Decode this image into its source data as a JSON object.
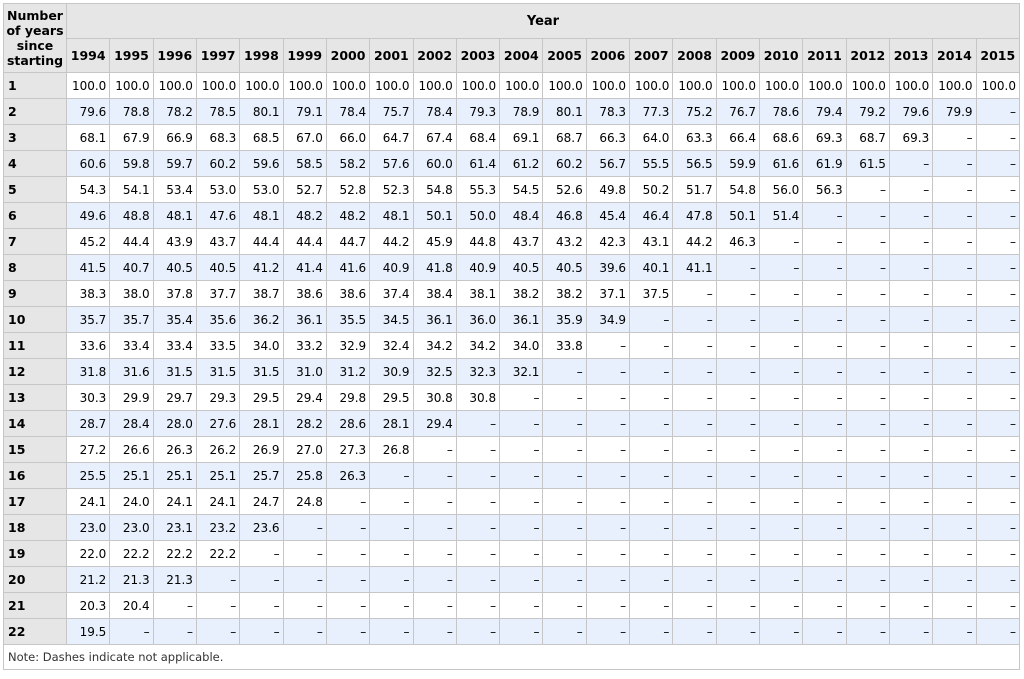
{
  "table": {
    "corner_label": "Number of years since starting",
    "group_label": "Year",
    "years": [
      "1994",
      "1995",
      "1996",
      "1997",
      "1998",
      "1999",
      "2000",
      "2001",
      "2002",
      "2003",
      "2004",
      "2005",
      "2006",
      "2007",
      "2008",
      "2009",
      "2010",
      "2011",
      "2012",
      "2013",
      "2014",
      "2015"
    ],
    "rows": [
      {
        "label": "1",
        "values": [
          "100.0",
          "100.0",
          "100.0",
          "100.0",
          "100.0",
          "100.0",
          "100.0",
          "100.0",
          "100.0",
          "100.0",
          "100.0",
          "100.0",
          "100.0",
          "100.0",
          "100.0",
          "100.0",
          "100.0",
          "100.0",
          "100.0",
          "100.0",
          "100.0",
          "100.0"
        ]
      },
      {
        "label": "2",
        "values": [
          "79.6",
          "78.8",
          "78.2",
          "78.5",
          "80.1",
          "79.1",
          "78.4",
          "75.7",
          "78.4",
          "79.3",
          "78.9",
          "80.1",
          "78.3",
          "77.3",
          "75.2",
          "76.7",
          "78.6",
          "79.4",
          "79.2",
          "79.6",
          "79.9",
          "–"
        ]
      },
      {
        "label": "3",
        "values": [
          "68.1",
          "67.9",
          "66.9",
          "68.3",
          "68.5",
          "67.0",
          "66.0",
          "64.7",
          "67.4",
          "68.4",
          "69.1",
          "68.7",
          "66.3",
          "64.0",
          "63.3",
          "66.4",
          "68.6",
          "69.3",
          "68.7",
          "69.3",
          "–",
          "–"
        ]
      },
      {
        "label": "4",
        "values": [
          "60.6",
          "59.8",
          "59.7",
          "60.2",
          "59.6",
          "58.5",
          "58.2",
          "57.6",
          "60.0",
          "61.4",
          "61.2",
          "60.2",
          "56.7",
          "55.5",
          "56.5",
          "59.9",
          "61.6",
          "61.9",
          "61.5",
          "–",
          "–",
          "–"
        ]
      },
      {
        "label": "5",
        "values": [
          "54.3",
          "54.1",
          "53.4",
          "53.0",
          "53.0",
          "52.7",
          "52.8",
          "52.3",
          "54.8",
          "55.3",
          "54.5",
          "52.6",
          "49.8",
          "50.2",
          "51.7",
          "54.8",
          "56.0",
          "56.3",
          "–",
          "–",
          "–",
          "–"
        ]
      },
      {
        "label": "6",
        "values": [
          "49.6",
          "48.8",
          "48.1",
          "47.6",
          "48.1",
          "48.2",
          "48.2",
          "48.1",
          "50.1",
          "50.0",
          "48.4",
          "46.8",
          "45.4",
          "46.4",
          "47.8",
          "50.1",
          "51.4",
          "–",
          "–",
          "–",
          "–",
          "–"
        ]
      },
      {
        "label": "7",
        "values": [
          "45.2",
          "44.4",
          "43.9",
          "43.7",
          "44.4",
          "44.4",
          "44.7",
          "44.2",
          "45.9",
          "44.8",
          "43.7",
          "43.2",
          "42.3",
          "43.1",
          "44.2",
          "46.3",
          "–",
          "–",
          "–",
          "–",
          "–",
          "–"
        ]
      },
      {
        "label": "8",
        "values": [
          "41.5",
          "40.7",
          "40.5",
          "40.5",
          "41.2",
          "41.4",
          "41.6",
          "40.9",
          "41.8",
          "40.9",
          "40.5",
          "40.5",
          "39.6",
          "40.1",
          "41.1",
          "–",
          "–",
          "–",
          "–",
          "–",
          "–",
          "–"
        ]
      },
      {
        "label": "9",
        "values": [
          "38.3",
          "38.0",
          "37.8",
          "37.7",
          "38.7",
          "38.6",
          "38.6",
          "37.4",
          "38.4",
          "38.1",
          "38.2",
          "38.2",
          "37.1",
          "37.5",
          "–",
          "–",
          "–",
          "–",
          "–",
          "–",
          "–",
          "–"
        ]
      },
      {
        "label": "10",
        "values": [
          "35.7",
          "35.7",
          "35.4",
          "35.6",
          "36.2",
          "36.1",
          "35.5",
          "34.5",
          "36.1",
          "36.0",
          "36.1",
          "35.9",
          "34.9",
          "–",
          "–",
          "–",
          "–",
          "–",
          "–",
          "–",
          "–",
          "–"
        ]
      },
      {
        "label": "11",
        "values": [
          "33.6",
          "33.4",
          "33.4",
          "33.5",
          "34.0",
          "33.2",
          "32.9",
          "32.4",
          "34.2",
          "34.2",
          "34.0",
          "33.8",
          "–",
          "–",
          "–",
          "–",
          "–",
          "–",
          "–",
          "–",
          "–",
          "–"
        ]
      },
      {
        "label": "12",
        "values": [
          "31.8",
          "31.6",
          "31.5",
          "31.5",
          "31.5",
          "31.0",
          "31.2",
          "30.9",
          "32.5",
          "32.3",
          "32.1",
          "–",
          "–",
          "–",
          "–",
          "–",
          "–",
          "–",
          "–",
          "–",
          "–",
          "–"
        ]
      },
      {
        "label": "13",
        "values": [
          "30.3",
          "29.9",
          "29.7",
          "29.3",
          "29.5",
          "29.4",
          "29.8",
          "29.5",
          "30.8",
          "30.8",
          "–",
          "–",
          "–",
          "–",
          "–",
          "–",
          "–",
          "–",
          "–",
          "–",
          "–",
          "–"
        ]
      },
      {
        "label": "14",
        "values": [
          "28.7",
          "28.4",
          "28.0",
          "27.6",
          "28.1",
          "28.2",
          "28.6",
          "28.1",
          "29.4",
          "–",
          "–",
          "–",
          "–",
          "–",
          "–",
          "–",
          "–",
          "–",
          "–",
          "–",
          "–",
          "–"
        ]
      },
      {
        "label": "15",
        "values": [
          "27.2",
          "26.6",
          "26.3",
          "26.2",
          "26.9",
          "27.0",
          "27.3",
          "26.8",
          "–",
          "–",
          "–",
          "–",
          "–",
          "–",
          "–",
          "–",
          "–",
          "–",
          "–",
          "–",
          "–",
          "–"
        ]
      },
      {
        "label": "16",
        "values": [
          "25.5",
          "25.1",
          "25.1",
          "25.1",
          "25.7",
          "25.8",
          "26.3",
          "–",
          "–",
          "–",
          "–",
          "–",
          "–",
          "–",
          "–",
          "–",
          "–",
          "–",
          "–",
          "–",
          "–",
          "–"
        ]
      },
      {
        "label": "17",
        "values": [
          "24.1",
          "24.0",
          "24.1",
          "24.1",
          "24.7",
          "24.8",
          "–",
          "–",
          "–",
          "–",
          "–",
          "–",
          "–",
          "–",
          "–",
          "–",
          "–",
          "–",
          "–",
          "–",
          "–",
          "–"
        ]
      },
      {
        "label": "18",
        "values": [
          "23.0",
          "23.0",
          "23.1",
          "23.2",
          "23.6",
          "–",
          "–",
          "–",
          "–",
          "–",
          "–",
          "–",
          "–",
          "–",
          "–",
          "–",
          "–",
          "–",
          "–",
          "–",
          "–",
          "–"
        ]
      },
      {
        "label": "19",
        "values": [
          "22.0",
          "22.2",
          "22.2",
          "22.2",
          "–",
          "–",
          "–",
          "–",
          "–",
          "–",
          "–",
          "–",
          "–",
          "–",
          "–",
          "–",
          "–",
          "–",
          "–",
          "–",
          "–",
          "–"
        ]
      },
      {
        "label": "20",
        "values": [
          "21.2",
          "21.3",
          "21.3",
          "–",
          "–",
          "–",
          "–",
          "–",
          "–",
          "–",
          "–",
          "–",
          "–",
          "–",
          "–",
          "–",
          "–",
          "–",
          "–",
          "–",
          "–",
          "–"
        ]
      },
      {
        "label": "21",
        "values": [
          "20.3",
          "20.4",
          "–",
          "–",
          "–",
          "–",
          "–",
          "–",
          "–",
          "–",
          "–",
          "–",
          "–",
          "–",
          "–",
          "–",
          "–",
          "–",
          "–",
          "–",
          "–",
          "–"
        ]
      },
      {
        "label": "22",
        "values": [
          "19.5",
          "–",
          "–",
          "–",
          "–",
          "–",
          "–",
          "–",
          "–",
          "–",
          "–",
          "–",
          "–",
          "–",
          "–",
          "–",
          "–",
          "–",
          "–",
          "–",
          "–",
          "–"
        ]
      }
    ]
  },
  "note": "Note: Dashes indicate not applicable."
}
